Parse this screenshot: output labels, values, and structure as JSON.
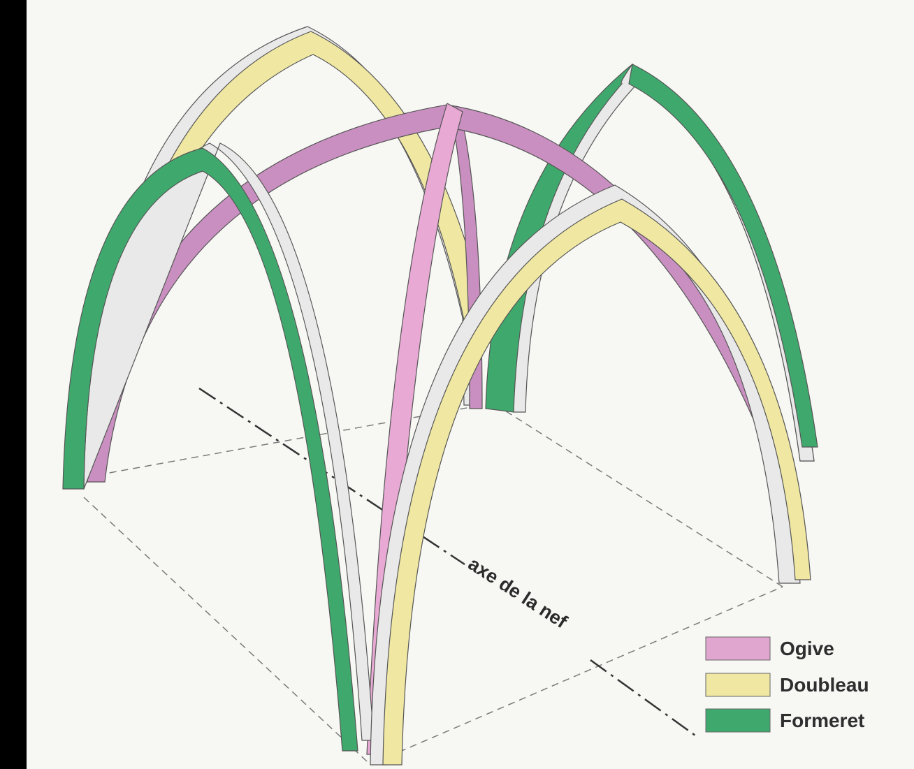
{
  "diagram": {
    "axis_label": "axe de la nef",
    "legend": [
      {
        "key": "ogive",
        "label": "Ogive",
        "color": "#e0a6cf"
      },
      {
        "key": "doubleau",
        "label": "Doubleau",
        "color": "#efe7a2"
      },
      {
        "key": "formeret",
        "label": "Formeret",
        "color": "#3fa96d"
      }
    ],
    "colors": {
      "ogive": "#c98fc0",
      "ogive_light": "#e8a9d4",
      "doubleau": "#efe7a2",
      "formeret": "#3fa96d",
      "stone_side": "#e9e9ea",
      "outline": "#555555",
      "background": "#f7f8f4"
    }
  }
}
